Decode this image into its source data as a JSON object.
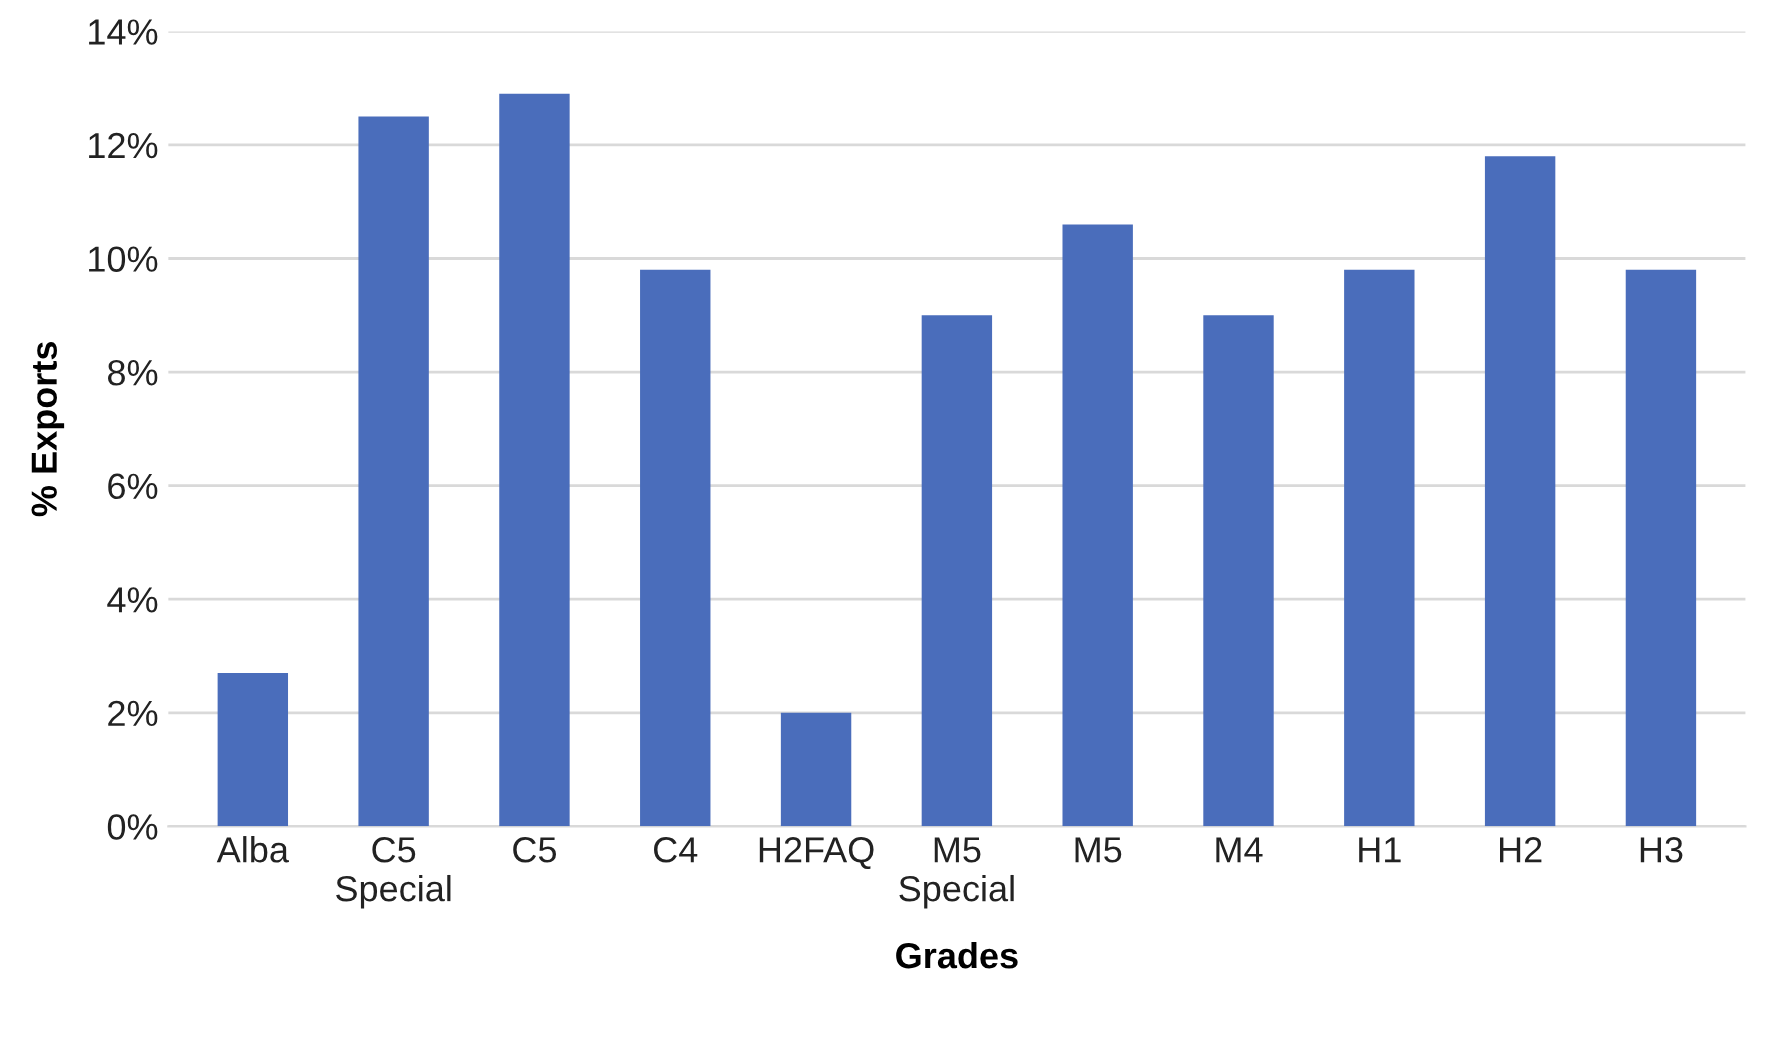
{
  "chart_data": {
    "type": "bar",
    "xlabel": "Grades",
    "ylabel": "% Exports",
    "categories": [
      "Alba",
      "C5\nSpecial",
      "C5",
      "C4",
      "H2FAQ",
      "M5\nSpecial",
      "M5",
      "M4",
      "H1",
      "H2",
      "H3"
    ],
    "values": [
      2.7,
      12.5,
      12.9,
      9.8,
      2.0,
      9.0,
      10.6,
      9.0,
      9.8,
      11.8,
      9.8
    ],
    "color": "#4a6dbb",
    "ylim": [
      0,
      14
    ],
    "yticks": [
      {
        "value": 0,
        "label": "0%"
      },
      {
        "value": 2,
        "label": "2%"
      },
      {
        "value": 4,
        "label": "4%"
      },
      {
        "value": 6,
        "label": "6%"
      },
      {
        "value": 8,
        "label": "8%"
      },
      {
        "value": 10,
        "label": "10%"
      },
      {
        "value": 12,
        "label": "12%"
      },
      {
        "value": 14,
        "label": "14%"
      }
    ],
    "grid": "y"
  }
}
